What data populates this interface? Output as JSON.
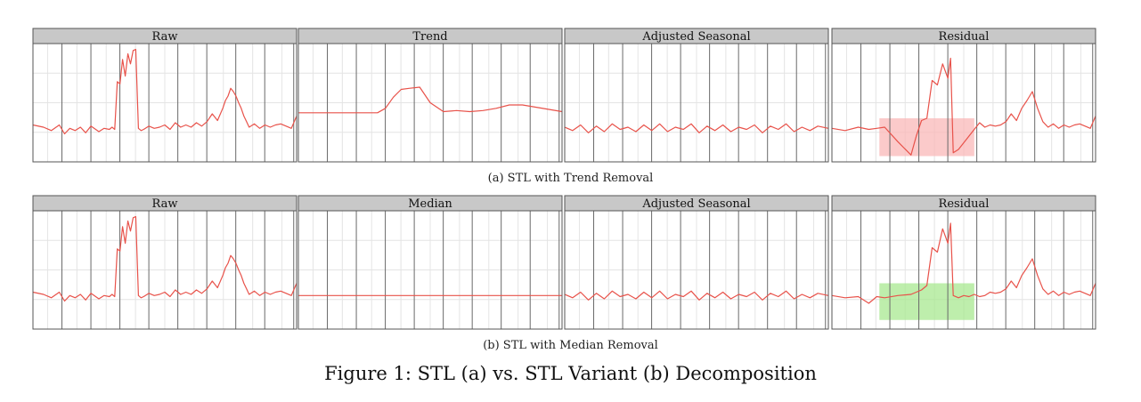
{
  "figure_caption": "Figure 1: STL (a) vs. STL Variant (b) Decomposition",
  "rows": [
    {
      "caption": "(a) STL with Trend Removal",
      "panels": [
        "Raw",
        "Trend",
        "Adjusted Seasonal",
        "Residual"
      ]
    },
    {
      "caption": "(b) STL with Median Removal",
      "panels": [
        "Raw",
        "Median",
        "Adjusted Seasonal",
        "Residual"
      ]
    }
  ],
  "colors": {
    "line": "#e8524a",
    "header_bg": "#c8c8c8",
    "frame": "#555555",
    "grid_major": "#6a6a6a",
    "grid_minor": "#e4e4e4",
    "highlight_a": "#f9b8b8",
    "highlight_b": "#a8e890"
  },
  "chart_data": [
    {
      "type": "line",
      "title": "Raw",
      "ylim": [
        0,
        1
      ],
      "x": [
        0,
        0.04,
        0.07,
        0.1,
        0.12,
        0.14,
        0.16,
        0.18,
        0.2,
        0.22,
        0.25,
        0.27,
        0.29,
        0.3,
        0.31,
        0.32,
        0.33,
        0.34,
        0.35,
        0.36,
        0.37,
        0.38,
        0.39,
        0.4,
        0.41,
        0.42,
        0.44,
        0.46,
        0.48,
        0.5,
        0.52,
        0.54,
        0.56,
        0.58,
        0.6,
        0.62,
        0.64,
        0.66,
        0.68,
        0.7,
        0.72,
        0.73,
        0.74,
        0.75,
        0.76,
        0.77,
        0.78,
        0.79,
        0.8,
        0.81,
        0.82,
        0.84,
        0.86,
        0.88,
        0.9,
        0.92,
        0.94,
        0.96,
        0.98,
        1.0
      ],
      "y": [
        0.3,
        0.28,
        0.25,
        0.3,
        0.22,
        0.27,
        0.25,
        0.28,
        0.23,
        0.29,
        0.24,
        0.27,
        0.26,
        0.28,
        0.26,
        0.69,
        0.67,
        0.89,
        0.74,
        0.94,
        0.85,
        0.97,
        0.98,
        0.27,
        0.25,
        0.26,
        0.29,
        0.27,
        0.28,
        0.3,
        0.26,
        0.32,
        0.28,
        0.3,
        0.28,
        0.32,
        0.29,
        0.33,
        0.4,
        0.34,
        0.45,
        0.52,
        0.56,
        0.63,
        0.6,
        0.56,
        0.5,
        0.45,
        0.38,
        0.33,
        0.28,
        0.31,
        0.27,
        0.3,
        0.28,
        0.3,
        0.31,
        0.29,
        0.27,
        0.38
      ]
    },
    {
      "type": "line",
      "title": "Trend",
      "ylim": [
        0,
        1
      ],
      "x": [
        0,
        0.1,
        0.2,
        0.3,
        0.33,
        0.36,
        0.39,
        0.42,
        0.46,
        0.5,
        0.55,
        0.6,
        0.65,
        0.7,
        0.75,
        0.8,
        0.85,
        0.9,
        0.95,
        1.0
      ],
      "y": [
        0.41,
        0.41,
        0.41,
        0.41,
        0.45,
        0.55,
        0.62,
        0.63,
        0.64,
        0.5,
        0.42,
        0.43,
        0.42,
        0.43,
        0.45,
        0.48,
        0.48,
        0.46,
        0.44,
        0.42
      ]
    },
    {
      "type": "line",
      "title": "Adjusted Seasonal",
      "ylim": [
        0,
        1
      ],
      "x": [
        0,
        0.03,
        0.06,
        0.09,
        0.12,
        0.15,
        0.18,
        0.21,
        0.24,
        0.27,
        0.3,
        0.33,
        0.36,
        0.39,
        0.42,
        0.45,
        0.48,
        0.51,
        0.54,
        0.57,
        0.6,
        0.63,
        0.66,
        0.69,
        0.72,
        0.75,
        0.78,
        0.81,
        0.84,
        0.87,
        0.9,
        0.93,
        0.96,
        1.0
      ],
      "y": [
        0.28,
        0.25,
        0.3,
        0.23,
        0.29,
        0.24,
        0.31,
        0.26,
        0.28,
        0.24,
        0.3,
        0.25,
        0.31,
        0.24,
        0.28,
        0.26,
        0.31,
        0.23,
        0.29,
        0.25,
        0.3,
        0.24,
        0.28,
        0.26,
        0.3,
        0.23,
        0.29,
        0.26,
        0.31,
        0.24,
        0.28,
        0.25,
        0.29,
        0.27
      ]
    },
    {
      "type": "line",
      "title": "Residual",
      "ylim": [
        0,
        1
      ],
      "x": [
        0,
        0.05,
        0.1,
        0.14,
        0.17,
        0.2,
        0.25,
        0.3,
        0.32,
        0.34,
        0.36,
        0.38,
        0.4,
        0.42,
        0.44,
        0.45,
        0.46,
        0.48,
        0.5,
        0.52,
        0.54,
        0.56,
        0.58,
        0.6,
        0.62,
        0.64,
        0.66,
        0.68,
        0.7,
        0.72,
        0.74,
        0.76,
        0.78,
        0.8,
        0.82,
        0.84,
        0.86,
        0.88,
        0.9,
        0.92,
        0.94,
        0.96,
        0.98,
        1.0
      ],
      "y": [
        0.27,
        0.25,
        0.28,
        0.26,
        0.27,
        0.28,
        0.15,
        0.03,
        0.2,
        0.34,
        0.36,
        0.7,
        0.66,
        0.85,
        0.72,
        0.9,
        0.05,
        0.08,
        0.14,
        0.2,
        0.26,
        0.32,
        0.28,
        0.3,
        0.29,
        0.3,
        0.33,
        0.4,
        0.34,
        0.45,
        0.52,
        0.6,
        0.45,
        0.33,
        0.28,
        0.31,
        0.27,
        0.3,
        0.28,
        0.3,
        0.31,
        0.29,
        0.27,
        0.38
      ],
      "highlight": {
        "x": [
          0.18,
          0.54
        ],
        "y": [
          0.02,
          0.36
        ]
      }
    },
    {
      "type": "line",
      "title": "Raw",
      "ylim": [
        0,
        1
      ],
      "x": [
        0,
        0.04,
        0.07,
        0.1,
        0.12,
        0.14,
        0.16,
        0.18,
        0.2,
        0.22,
        0.25,
        0.27,
        0.29,
        0.3,
        0.31,
        0.32,
        0.33,
        0.34,
        0.35,
        0.36,
        0.37,
        0.38,
        0.39,
        0.4,
        0.41,
        0.42,
        0.44,
        0.46,
        0.48,
        0.5,
        0.52,
        0.54,
        0.56,
        0.58,
        0.6,
        0.62,
        0.64,
        0.66,
        0.68,
        0.7,
        0.72,
        0.73,
        0.74,
        0.75,
        0.76,
        0.77,
        0.78,
        0.79,
        0.8,
        0.81,
        0.82,
        0.84,
        0.86,
        0.88,
        0.9,
        0.92,
        0.94,
        0.96,
        0.98,
        1.0
      ],
      "y": [
        0.3,
        0.28,
        0.25,
        0.3,
        0.22,
        0.27,
        0.25,
        0.28,
        0.23,
        0.29,
        0.24,
        0.27,
        0.26,
        0.28,
        0.26,
        0.69,
        0.67,
        0.89,
        0.74,
        0.94,
        0.85,
        0.97,
        0.98,
        0.27,
        0.25,
        0.26,
        0.29,
        0.27,
        0.28,
        0.3,
        0.26,
        0.32,
        0.28,
        0.3,
        0.28,
        0.32,
        0.29,
        0.33,
        0.4,
        0.34,
        0.45,
        0.52,
        0.56,
        0.63,
        0.6,
        0.56,
        0.5,
        0.45,
        0.38,
        0.33,
        0.28,
        0.31,
        0.27,
        0.3,
        0.28,
        0.3,
        0.31,
        0.29,
        0.27,
        0.38
      ]
    },
    {
      "type": "line",
      "title": "Median",
      "ylim": [
        0,
        1
      ],
      "x": [
        0,
        1
      ],
      "y": [
        0.27,
        0.27
      ]
    },
    {
      "type": "line",
      "title": "Adjusted Seasonal",
      "ylim": [
        0,
        1
      ],
      "x": [
        0,
        0.03,
        0.06,
        0.09,
        0.12,
        0.15,
        0.18,
        0.21,
        0.24,
        0.27,
        0.3,
        0.33,
        0.36,
        0.39,
        0.42,
        0.45,
        0.48,
        0.51,
        0.54,
        0.57,
        0.6,
        0.63,
        0.66,
        0.69,
        0.72,
        0.75,
        0.78,
        0.81,
        0.84,
        0.87,
        0.9,
        0.93,
        0.96,
        1.0
      ],
      "y": [
        0.28,
        0.25,
        0.3,
        0.23,
        0.29,
        0.24,
        0.31,
        0.26,
        0.28,
        0.24,
        0.3,
        0.25,
        0.31,
        0.24,
        0.28,
        0.26,
        0.31,
        0.23,
        0.29,
        0.25,
        0.3,
        0.24,
        0.28,
        0.26,
        0.3,
        0.23,
        0.29,
        0.26,
        0.31,
        0.24,
        0.28,
        0.25,
        0.29,
        0.27
      ]
    },
    {
      "type": "line",
      "title": "Residual",
      "ylim": [
        0,
        1
      ],
      "x": [
        0,
        0.05,
        0.1,
        0.14,
        0.17,
        0.2,
        0.25,
        0.3,
        0.32,
        0.34,
        0.36,
        0.38,
        0.4,
        0.42,
        0.44,
        0.45,
        0.46,
        0.48,
        0.5,
        0.52,
        0.54,
        0.56,
        0.58,
        0.6,
        0.62,
        0.64,
        0.66,
        0.68,
        0.7,
        0.72,
        0.74,
        0.76,
        0.78,
        0.8,
        0.82,
        0.84,
        0.86,
        0.88,
        0.9,
        0.92,
        0.94,
        0.96,
        0.98,
        1.0
      ],
      "y": [
        0.27,
        0.25,
        0.26,
        0.2,
        0.26,
        0.25,
        0.27,
        0.28,
        0.3,
        0.32,
        0.36,
        0.7,
        0.66,
        0.87,
        0.74,
        0.92,
        0.27,
        0.25,
        0.27,
        0.26,
        0.28,
        0.26,
        0.27,
        0.3,
        0.29,
        0.3,
        0.33,
        0.4,
        0.34,
        0.45,
        0.52,
        0.6,
        0.45,
        0.33,
        0.28,
        0.31,
        0.27,
        0.3,
        0.28,
        0.3,
        0.31,
        0.29,
        0.27,
        0.38
      ],
      "highlight": {
        "x": [
          0.18,
          0.54
        ],
        "y": [
          0.05,
          0.38
        ]
      }
    }
  ]
}
